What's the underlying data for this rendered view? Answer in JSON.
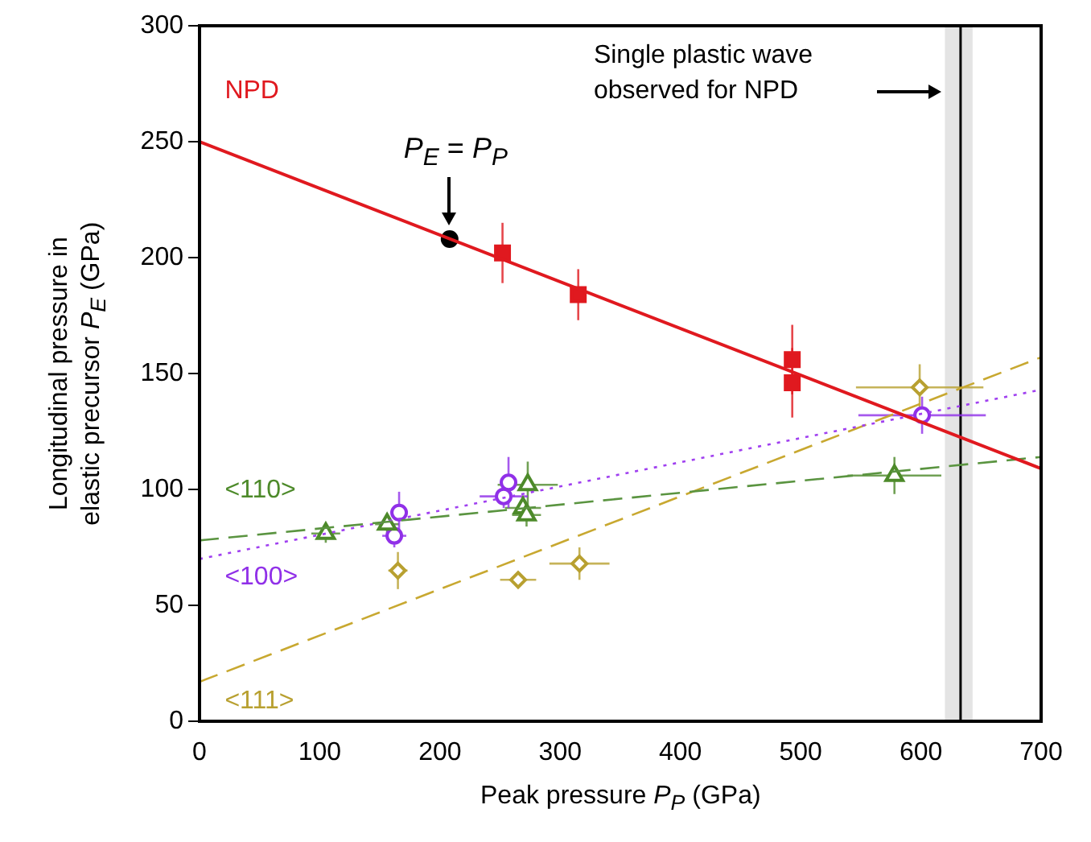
{
  "chart_data": {
    "type": "scatter",
    "xlabel": "Peak pressure P$_{P}$ (GPa)",
    "ylabel": "Longitudinal pressure in elastic precursor P$_{E}$ (GPa)",
    "xlim": [
      0,
      700
    ],
    "xticks": [
      0,
      100,
      200,
      300,
      400,
      500,
      600,
      700
    ],
    "ylim": [
      0,
      300
    ],
    "yticks": [
      0,
      50,
      100,
      150,
      200,
      250,
      300
    ],
    "grid": false,
    "legend": false,
    "series": [
      {
        "type": "line",
        "color": "#e0191f",
        "x": [
          0,
          700
        ],
        "values": [
          250,
          109
        ],
        "line_style": "solid"
      },
      {
        "type": "line",
        "color": "#5a9440",
        "x": [
          0,
          700
        ],
        "values": [
          78,
          114
        ],
        "line_style": "dashed"
      },
      {
        "type": "line",
        "color": "#a040f0",
        "x": [
          0,
          700
        ],
        "values": [
          70,
          143
        ],
        "line_style": "dotted"
      },
      {
        "type": "line",
        "color": "#c8a830",
        "x": [
          0,
          700
        ],
        "values": [
          17,
          157
        ],
        "line_style": "dashed"
      },
      {
        "name": "NPD",
        "color": "#e0191f",
        "marker": "square",
        "x": [
          252,
          315,
          493,
          493
        ],
        "values": [
          202,
          184,
          156,
          146
        ],
        "errors": [
          13,
          11,
          15,
          15
        ],
        "xerrors": [
          4,
          4,
          4,
          4
        ]
      },
      {
        "name": "<110>",
        "color": "#4d8a2a",
        "marker": "triangle",
        "x": [
          105,
          156,
          273,
          269,
          272,
          578
        ],
        "values": [
          81,
          85,
          102,
          92,
          89,
          106
        ],
        "errors": [
          4,
          4,
          10,
          5,
          5,
          8
        ],
        "xerrors": [
          12,
          10,
          25,
          15,
          12,
          39
        ]
      },
      {
        "name": "<100>",
        "color": "#9030e8",
        "marker": "circle",
        "x": [
          166,
          162,
          257,
          253,
          601
        ],
        "values": [
          90,
          80,
          103,
          97,
          132
        ],
        "errors": [
          9,
          5,
          11,
          5,
          8
        ],
        "xerrors": [
          6,
          10,
          6,
          20,
          53
        ]
      },
      {
        "name": "<111>",
        "color": "#b8a030",
        "marker": "diamond",
        "x": [
          165,
          265,
          316,
          599
        ],
        "values": [
          65,
          61,
          68,
          144
        ],
        "errors": [
          8,
          3,
          7,
          10
        ],
        "xerrors": [
          8,
          15,
          25,
          53
        ]
      },
      {
        "color": "#000000",
        "marker": "circle",
        "x": [
          208
        ],
        "values": [
          208
        ]
      }
    ],
    "ref_lines": [
      {
        "axis": "x",
        "value": 633,
        "label": "Single plastic wave observed for NPD",
        "color": "#000000"
      }
    ],
    "bands": [
      {
        "axis": "x",
        "from": 620,
        "to": 643,
        "color": "#e4e4e4"
      }
    ],
    "annotations": [
      {
        "text": "P$_{E}$ = P$_{P}$",
        "x": 208,
        "y": 208
      }
    ]
  }
}
